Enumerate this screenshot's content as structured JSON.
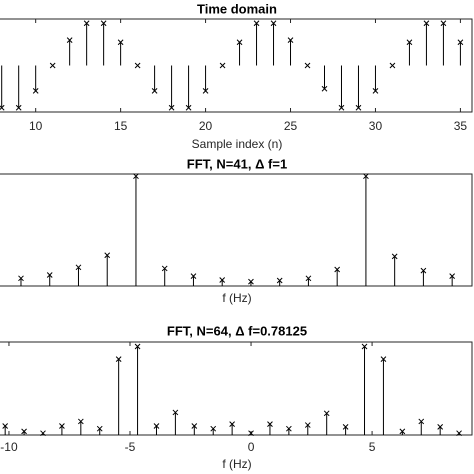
{
  "chart_data": [
    {
      "type": "stem",
      "title": "Time domain",
      "xlabel": "Sample index (n)",
      "color": "#000000",
      "marker": "x",
      "x": [
        8,
        9,
        10,
        11,
        12,
        13,
        14,
        15,
        16,
        17,
        18,
        19,
        20,
        21,
        22,
        23,
        24,
        25,
        26,
        27,
        28,
        29,
        30,
        31,
        32,
        33,
        34,
        35
      ],
      "values": [
        -1,
        -1,
        -0.6,
        0,
        0.6,
        1,
        1,
        0.55,
        0,
        -0.6,
        -1,
        -1,
        -0.6,
        0,
        0.55,
        1,
        1,
        0.6,
        0,
        -0.55,
        -1,
        -1,
        -0.6,
        0,
        0.55,
        1,
        1,
        0.55
      ],
      "xlim": [
        7.9,
        35.8
      ],
      "ylim": [
        -1.1,
        1.1
      ],
      "xticks": [
        10,
        15,
        20,
        25,
        30,
        35
      ]
    },
    {
      "type": "stem",
      "title": "FFT, N=41, Δ f=1",
      "xlabel": "f (Hz)",
      "color": "#000000",
      "marker": "x",
      "x": [
        -8,
        -7,
        -6,
        -5,
        -4,
        -3,
        -2,
        -1,
        0,
        1,
        2,
        3,
        4,
        5,
        6,
        7
      ],
      "values": [
        0.07,
        0.1,
        0.17,
        0.28,
        1.0,
        0.16,
        0.09,
        0.055,
        0.04,
        0.05,
        0.07,
        0.15,
        1.0,
        0.27,
        0.14,
        0.09
      ],
      "xlim": [
        -8.73,
        7.76
      ],
      "ylim": [
        0,
        1.02
      ]
    },
    {
      "type": "stem",
      "title": "FFT, N=64, Δ f=0.78125",
      "xlabel": "f (Hz)",
      "color": "#000000",
      "marker": "x",
      "x": [
        -10.15625,
        -9.375,
        -8.59375,
        -7.8125,
        -7.03125,
        -6.25,
        -5.46875,
        -4.6875,
        -3.90625,
        -3.125,
        -2.34375,
        -1.5625,
        -0.78125,
        0,
        0.78125,
        1.5625,
        2.34375,
        3.125,
        3.90625,
        4.6875,
        5.46875,
        6.25,
        7.03125,
        7.8125,
        8.59375
      ],
      "values": [
        0.1,
        0.04,
        0.02,
        0.1,
        0.15,
        0.07,
        0.84,
        0.98,
        0.1,
        0.25,
        0.1,
        0.07,
        0.12,
        0.02,
        0.12,
        0.07,
        0.11,
        0.24,
        0.09,
        0.98,
        0.84,
        0.04,
        0.15,
        0.09,
        0.02
      ],
      "xlim": [
        -10.37,
        9.21
      ],
      "ylim": [
        0,
        1.03
      ],
      "xticks": [
        -10,
        -5,
        0,
        5
      ]
    }
  ]
}
